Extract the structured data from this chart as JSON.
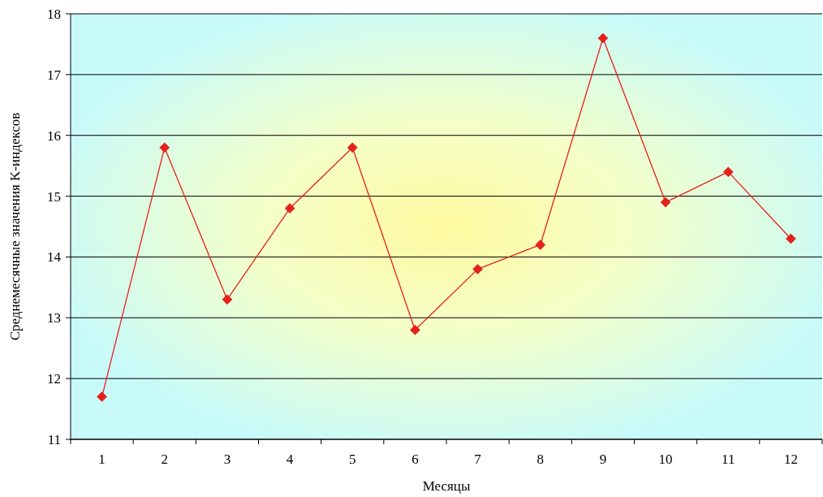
{
  "chart_data": {
    "type": "line",
    "xlabel": "Месяцы",
    "ylabel": "Среднемесячные значения K-индексов",
    "categories": [
      "1",
      "2",
      "3",
      "4",
      "5",
      "6",
      "7",
      "8",
      "9",
      "10",
      "11",
      "12"
    ],
    "series": [
      {
        "color": "#e8201c",
        "values": [
          11.7,
          15.8,
          13.3,
          14.8,
          15.8,
          12.8,
          13.8,
          14.2,
          17.6,
          14.9,
          15.4,
          14.3
        ]
      }
    ],
    "ylim": [
      11,
      18
    ],
    "yticks": [
      11,
      12,
      13,
      14,
      15,
      16,
      17,
      18
    ],
    "grid": "y",
    "marker": "diamond",
    "line_style": "solid"
  }
}
